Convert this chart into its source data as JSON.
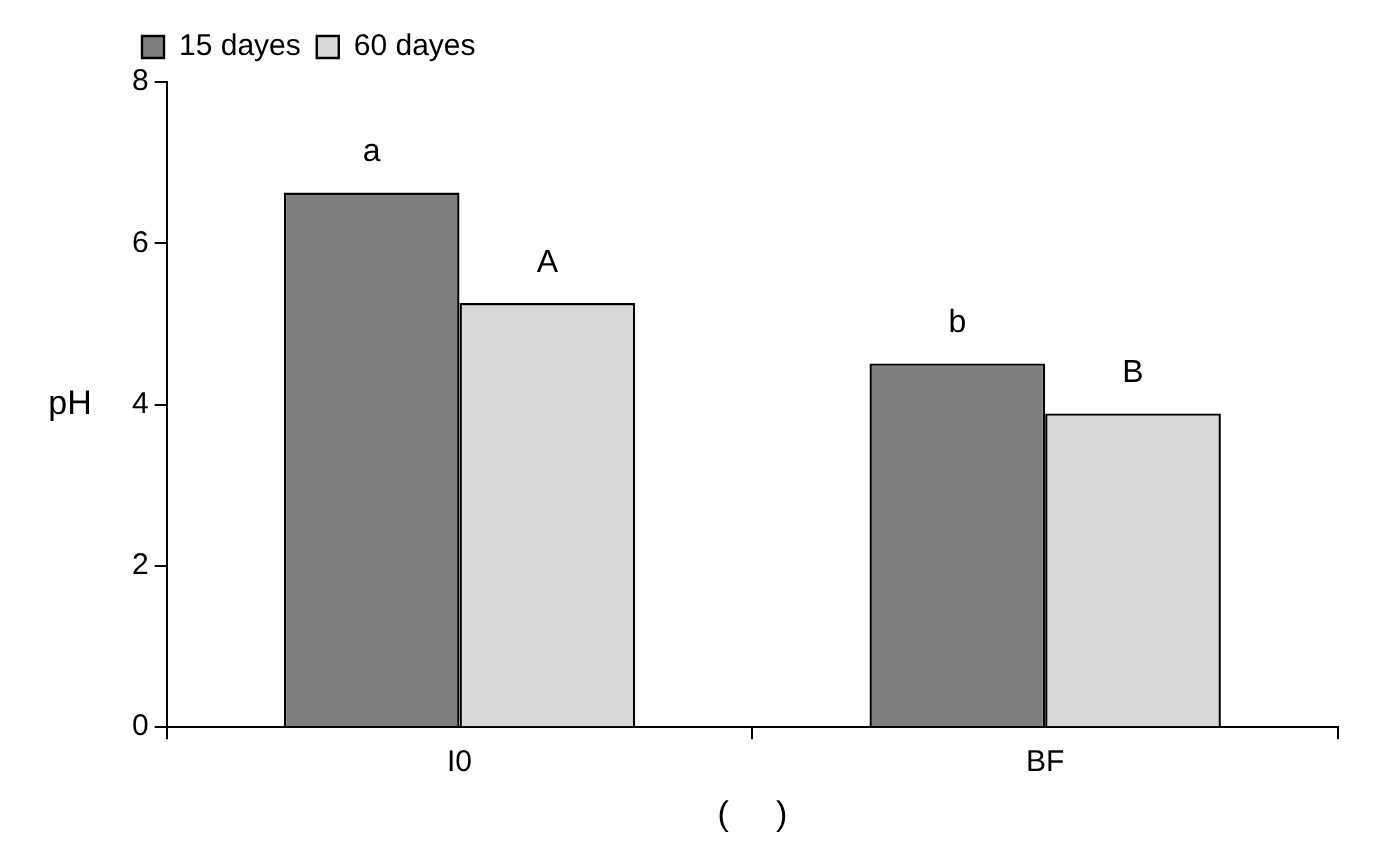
{
  "chart_data": {
    "type": "bar",
    "ylabel": "pH",
    "xlabel": "(     )",
    "categories": [
      "I0",
      "BF"
    ],
    "series": [
      {
        "name": "15 dayes",
        "color": "#7f7f7f",
        "values": [
          6.63,
          4.51
        ]
      },
      {
        "name": "60 dayes",
        "color": "#d9d9d9",
        "values": [
          5.26,
          3.89
        ]
      }
    ],
    "ylim": [
      0,
      8
    ],
    "yticks": [
      0,
      2,
      4,
      6,
      8
    ],
    "grid": false,
    "legend": "top left",
    "annotations": [
      {
        "text": "a",
        "x": "I0",
        "y": 6.63
      },
      {
        "text": "A",
        "x": "I0",
        "y": 5.26
      },
      {
        "text": "b",
        "x": "BF",
        "y": 4.51
      },
      {
        "text": "B",
        "x": "BF",
        "y": 3.89
      }
    ]
  }
}
